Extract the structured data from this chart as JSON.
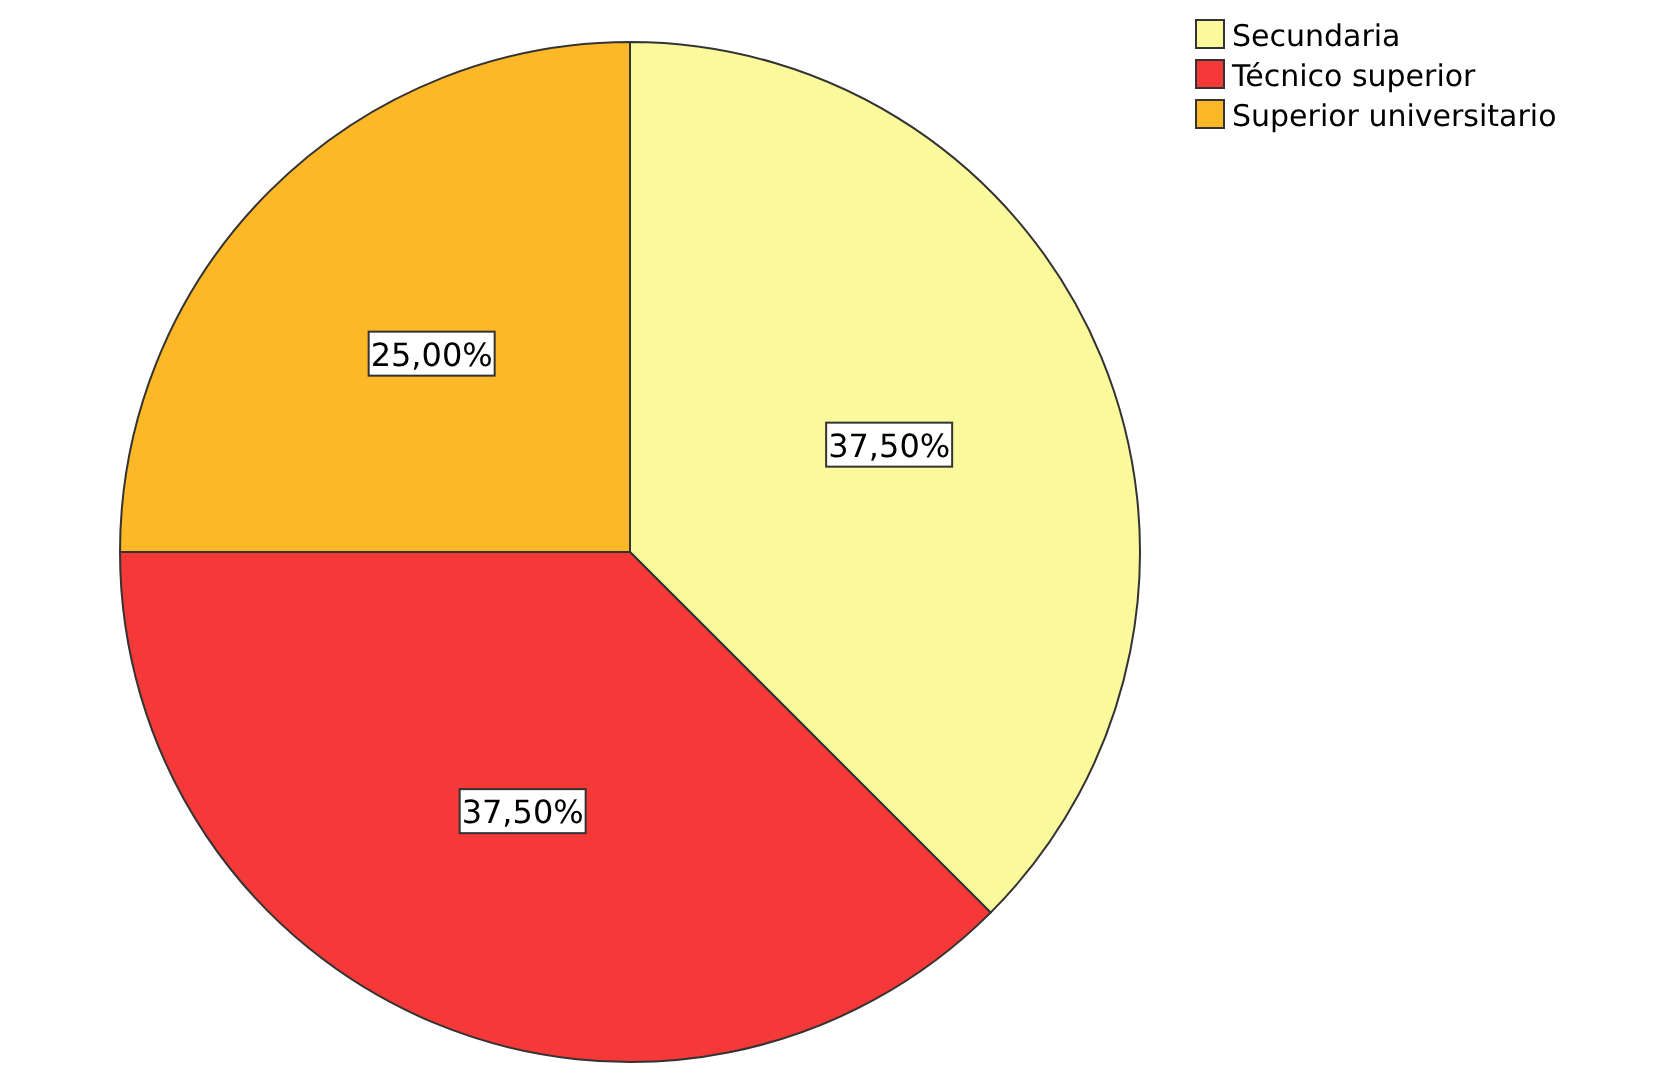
{
  "chart_data": {
    "type": "pie",
    "categories": [
      "Secundaria",
      "Técnico superior",
      "Superior universitario"
    ],
    "values": [
      37.5,
      37.5,
      25
    ],
    "colors": [
      "#fafa9c",
      "#f53838",
      "#fdb827"
    ],
    "value_labels": [
      "37,50%",
      "37,50%",
      "25,00%"
    ],
    "legend": "top right"
  }
}
